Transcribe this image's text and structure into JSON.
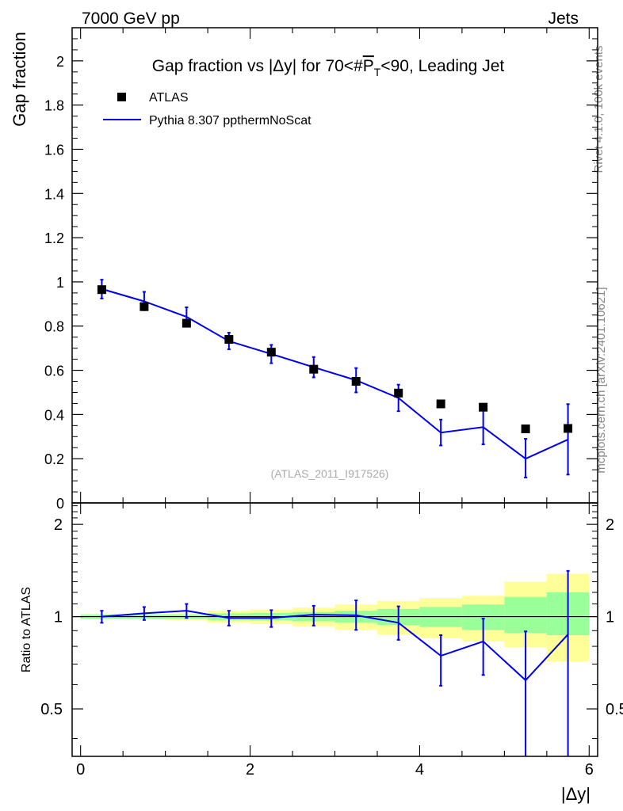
{
  "header": {
    "left": "7000 GeV pp",
    "right": "Jets"
  },
  "side_labels": {
    "rivet": "Rivet 4.1.0,  100k events",
    "mcplots": "mcplots.cern.ch [arXiv:2401.10621]"
  },
  "colors": {
    "mc": "#0000ee",
    "data": "#000000",
    "band_inner": "#99ff99",
    "band_outer": "#ffff99"
  },
  "chart_data": [
    {
      "type": "scatter",
      "panel": "main",
      "title": "Gap fraction vs |Δy| for 70<#P̅T<90, Leading Jet",
      "title_parts": [
        "Gap fraction vs |Δy| for 70<#",
        "P",
        "T",
        "<90, Leading Jet"
      ],
      "ylabel": "Gap fraction",
      "xlim": [
        -0.1,
        6.1
      ],
      "ylim": [
        0,
        2.15
      ],
      "y_ticks": [
        0,
        0.2,
        0.4,
        0.6,
        0.8,
        1,
        1.2,
        1.4,
        1.6,
        1.8,
        2
      ],
      "y_tick_labels": [
        "0",
        "0.2",
        "0.4",
        "0.6",
        "0.8",
        "1",
        "1.2",
        "1.4",
        "1.6",
        "1.8",
        "2"
      ],
      "watermark": "(ATLAS_2011_I917526)",
      "legend": [
        {
          "label": "ATLAS",
          "marker": "square"
        },
        {
          "label": "Pythia 8.307 ppthermNoScat",
          "marker": "line"
        }
      ],
      "x": [
        0.25,
        0.75,
        1.25,
        1.75,
        2.25,
        2.75,
        3.25,
        3.75,
        4.25,
        4.75,
        5.25,
        5.75
      ],
      "series": [
        {
          "name": "ATLAS",
          "values": [
            0.965,
            0.888,
            0.813,
            0.74,
            0.682,
            0.605,
            0.55,
            0.497,
            0.448,
            0.433,
            0.335,
            0.337
          ]
        },
        {
          "name": "Pythia 8.307 ppthermNoScat",
          "values": [
            0.968,
            0.912,
            0.842,
            0.732,
            0.674,
            0.614,
            0.555,
            0.475,
            0.318,
            0.343,
            0.2,
            0.287
          ],
          "err_low": [
            0.925,
            0.872,
            0.8,
            0.695,
            0.632,
            0.568,
            0.5,
            0.415,
            0.26,
            0.265,
            0.115,
            0.128
          ],
          "err_high": [
            1.01,
            0.955,
            0.885,
            0.77,
            0.715,
            0.66,
            0.61,
            0.535,
            0.377,
            0.42,
            0.29,
            0.447
          ]
        }
      ]
    },
    {
      "type": "line",
      "panel": "ratio",
      "ylabel": "Ratio to ATLAS",
      "xlabel": "|Δy|",
      "xlim": [
        -0.1,
        6.1
      ],
      "ylim": [
        0.35,
        2.35
      ],
      "y_scale": "log",
      "y_ticks": [
        0.5,
        1,
        2
      ],
      "y_tick_labels": [
        "0.5",
        "1",
        "2"
      ],
      "x_ticks": [
        0,
        2,
        4,
        6
      ],
      "x_tick_labels": [
        "0",
        "2",
        "4",
        "6"
      ],
      "bin_edges": [
        0,
        0.5,
        1,
        1.5,
        2,
        2.5,
        3,
        3.5,
        4,
        4.5,
        5,
        5.5,
        6
      ],
      "band_inner_low": [
        0.985,
        0.985,
        0.985,
        0.975,
        0.972,
        0.965,
        0.955,
        0.94,
        0.925,
        0.905,
        0.885,
        0.87
      ],
      "band_inner_high": [
        1.015,
        1.015,
        1.015,
        1.025,
        1.028,
        1.035,
        1.045,
        1.06,
        1.075,
        1.095,
        1.16,
        1.2
      ],
      "band_outer_low": [
        0.98,
        0.98,
        0.975,
        0.955,
        0.945,
        0.93,
        0.905,
        0.875,
        0.85,
        0.83,
        0.795,
        0.715
      ],
      "band_outer_high": [
        1.02,
        1.02,
        1.025,
        1.045,
        1.055,
        1.07,
        1.095,
        1.125,
        1.15,
        1.17,
        1.3,
        1.38
      ],
      "x": [
        0.25,
        0.75,
        1.25,
        1.75,
        2.25,
        2.75,
        3.25,
        3.75,
        4.25,
        4.75,
        5.25,
        5.75
      ],
      "values": [
        1.0,
        1.025,
        1.045,
        0.99,
        0.99,
        1.015,
        1.01,
        0.955,
        0.745,
        0.83,
        0.62,
        0.875
      ],
      "err_low": [
        0.955,
        0.975,
        0.99,
        0.935,
        0.925,
        0.935,
        0.905,
        0.84,
        0.595,
        0.645,
        0.34,
        0.34
      ],
      "err_high": [
        1.045,
        1.075,
        1.1,
        1.045,
        1.05,
        1.085,
        1.13,
        1.08,
        0.87,
        0.985,
        0.895,
        1.41
      ]
    }
  ]
}
